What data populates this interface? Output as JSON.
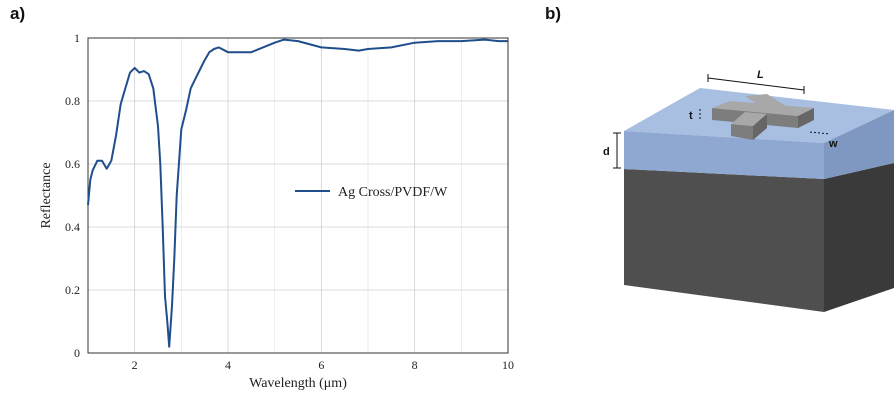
{
  "panels": {
    "a_label": "a)",
    "b_label": "b)"
  },
  "chart_data": {
    "type": "line",
    "xlabel": "Wavelength (μm)",
    "ylabel": "Reflectance",
    "xlim": [
      1,
      10
    ],
    "ylim": [
      0,
      1
    ],
    "xticks": [
      2,
      4,
      6,
      8,
      10
    ],
    "yticks": [
      0,
      0.2,
      0.4,
      0.6,
      0.8,
      1
    ],
    "ytick_labels": [
      "0",
      "0.2",
      "0.4",
      "0.6",
      "0.8",
      "1"
    ],
    "grid": true,
    "legend_placement": "center-right",
    "series": [
      {
        "name": "Ag Cross/PVDF/W",
        "color": "#1f4e8c",
        "x": [
          1.0,
          1.05,
          1.1,
          1.2,
          1.3,
          1.4,
          1.5,
          1.6,
          1.7,
          1.8,
          1.9,
          2.0,
          2.1,
          2.2,
          2.3,
          2.4,
          2.5,
          2.55,
          2.6,
          2.65,
          2.7,
          2.74,
          2.8,
          2.85,
          2.9,
          3.0,
          3.1,
          3.2,
          3.3,
          3.4,
          3.5,
          3.6,
          3.7,
          3.8,
          4.0,
          4.5,
          5.0,
          5.2,
          5.5,
          6.0,
          6.5,
          6.8,
          7.0,
          7.5,
          8.0,
          8.5,
          9.0,
          9.5,
          9.8,
          10.0
        ],
        "y": [
          0.47,
          0.55,
          0.58,
          0.61,
          0.61,
          0.585,
          0.61,
          0.69,
          0.79,
          0.84,
          0.89,
          0.905,
          0.89,
          0.895,
          0.885,
          0.84,
          0.72,
          0.6,
          0.4,
          0.18,
          0.1,
          0.02,
          0.15,
          0.3,
          0.5,
          0.71,
          0.77,
          0.84,
          0.87,
          0.9,
          0.93,
          0.955,
          0.965,
          0.97,
          0.955,
          0.955,
          0.985,
          0.995,
          0.99,
          0.97,
          0.965,
          0.96,
          0.965,
          0.97,
          0.985,
          0.99,
          0.99,
          0.995,
          0.99,
          0.99
        ]
      }
    ]
  },
  "diagram": {
    "labels": {
      "length": "L",
      "thickness": "t",
      "width": "w",
      "depth": "d"
    },
    "colors": {
      "top_layer": "#a9bfe1",
      "top_layer_side": "#8fa8d1",
      "substrate_front": "#4f4f4f",
      "substrate_side": "#3a3a3a",
      "cross_top": "#a8a8a8",
      "cross_front": "#7d7d7d"
    }
  }
}
